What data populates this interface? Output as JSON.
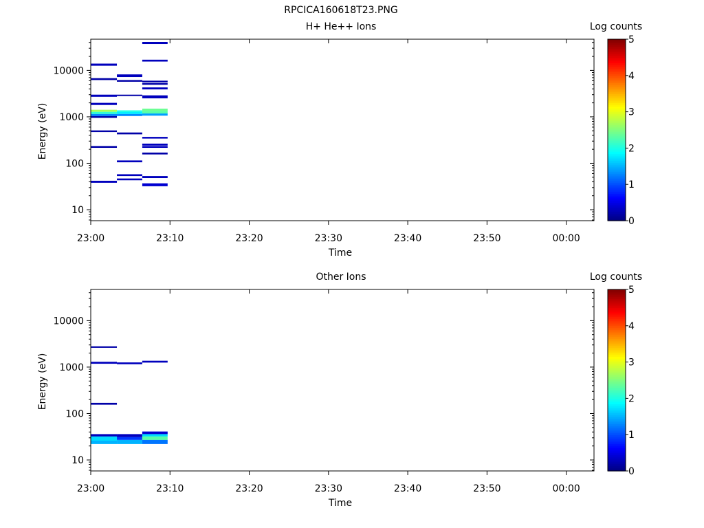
{
  "figure": {
    "title": "RPCICA160618T23.PNG"
  },
  "chart_data": [
    {
      "type": "heatmap",
      "title": "H+ He++ Ions",
      "xlabel": "Time",
      "ylabel": "Energy (eV)",
      "y_scale": "log",
      "x_ticks": [
        "23:00",
        "23:10",
        "23:20",
        "23:30",
        "23:40",
        "23:50",
        "00:00"
      ],
      "x_range_minutes": [
        0,
        63.5
      ],
      "y_ticks": [
        "10",
        "100",
        "1000",
        "10000"
      ],
      "y_range": [
        5.8,
        47000
      ],
      "colorbar": {
        "label": "Log counts",
        "ticks": [
          "0",
          "1",
          "2",
          "3",
          "4",
          "5"
        ],
        "range": [
          0,
          5
        ],
        "colormap": "jet"
      },
      "cells": [
        {
          "t0": 0.0,
          "t1": 3.3,
          "e0": 12600,
          "e1": 14000,
          "v": 0.3
        },
        {
          "t0": 0.0,
          "t1": 3.3,
          "e0": 6200,
          "e1": 6800,
          "v": 0.2
        },
        {
          "t0": 0.0,
          "t1": 3.3,
          "e0": 2700,
          "e1": 3000,
          "v": 0.3
        },
        {
          "t0": 0.0,
          "t1": 3.3,
          "e0": 1800,
          "e1": 2000,
          "v": 0.3
        },
        {
          "t0": 0.0,
          "t1": 3.3,
          "e0": 1280,
          "e1": 1420,
          "v": 2.7
        },
        {
          "t0": 0.0,
          "t1": 3.3,
          "e0": 1150,
          "e1": 1280,
          "v": 2.1
        },
        {
          "t0": 0.0,
          "t1": 3.3,
          "e0": 1040,
          "e1": 1150,
          "v": 1.3
        },
        {
          "t0": 0.0,
          "t1": 3.3,
          "e0": 950,
          "e1": 1040,
          "v": 0.2
        },
        {
          "t0": 0.0,
          "t1": 3.3,
          "e0": 470,
          "e1": 510,
          "v": 0.2
        },
        {
          "t0": 0.0,
          "t1": 3.3,
          "e0": 215,
          "e1": 235,
          "v": 0.2
        },
        {
          "t0": 0.0,
          "t1": 3.3,
          "e0": 38,
          "e1": 42,
          "v": 0.3
        },
        {
          "t0": 3.3,
          "t1": 6.5,
          "e0": 7200,
          "e1": 8200,
          "v": 0.3
        },
        {
          "t0": 3.3,
          "t1": 6.5,
          "e0": 5700,
          "e1": 6200,
          "v": 0.2
        },
        {
          "t0": 3.3,
          "t1": 6.5,
          "e0": 2800,
          "e1": 3000,
          "v": 0.2
        },
        {
          "t0": 3.3,
          "t1": 6.5,
          "e0": 1270,
          "e1": 1380,
          "v": 2.0
        },
        {
          "t0": 3.3,
          "t1": 6.5,
          "e0": 1150,
          "e1": 1270,
          "v": 1.8
        },
        {
          "t0": 3.3,
          "t1": 6.5,
          "e0": 1040,
          "e1": 1150,
          "v": 1.3
        },
        {
          "t0": 3.3,
          "t1": 6.5,
          "e0": 420,
          "e1": 460,
          "v": 0.2
        },
        {
          "t0": 3.3,
          "t1": 6.5,
          "e0": 105,
          "e1": 115,
          "v": 0.3
        },
        {
          "t0": 3.3,
          "t1": 6.5,
          "e0": 53,
          "e1": 58,
          "v": 0.3
        },
        {
          "t0": 3.3,
          "t1": 6.5,
          "e0": 43,
          "e1": 47,
          "v": 0.3
        },
        {
          "t0": 6.5,
          "t1": 9.7,
          "e0": 37000,
          "e1": 41000,
          "v": 0.3
        },
        {
          "t0": 6.5,
          "t1": 9.7,
          "e0": 15500,
          "e1": 17000,
          "v": 0.3
        },
        {
          "t0": 6.5,
          "t1": 9.7,
          "e0": 5500,
          "e1": 6000,
          "v": 0.2
        },
        {
          "t0": 6.5,
          "t1": 9.7,
          "e0": 4900,
          "e1": 5300,
          "v": 0.2
        },
        {
          "t0": 6.5,
          "t1": 9.7,
          "e0": 3900,
          "e1": 4300,
          "v": 0.3
        },
        {
          "t0": 6.5,
          "t1": 9.7,
          "e0": 2500,
          "e1": 2900,
          "v": 0.3
        },
        {
          "t0": 6.5,
          "t1": 9.7,
          "e0": 1330,
          "e1": 1500,
          "v": 2.4
        },
        {
          "t0": 6.5,
          "t1": 9.7,
          "e0": 1180,
          "e1": 1330,
          "v": 2.3
        },
        {
          "t0": 6.5,
          "t1": 9.7,
          "e0": 1060,
          "e1": 1180,
          "v": 1.4
        },
        {
          "t0": 6.5,
          "t1": 9.7,
          "e0": 340,
          "e1": 370,
          "v": 0.3
        },
        {
          "t0": 6.5,
          "t1": 9.7,
          "e0": 240,
          "e1": 265,
          "v": 0.3
        },
        {
          "t0": 6.5,
          "t1": 9.7,
          "e0": 215,
          "e1": 235,
          "v": 0.3
        },
        {
          "t0": 6.5,
          "t1": 9.7,
          "e0": 155,
          "e1": 170,
          "v": 0.2
        },
        {
          "t0": 6.5,
          "t1": 9.7,
          "e0": 48,
          "e1": 53,
          "v": 0.3
        },
        {
          "t0": 6.5,
          "t1": 9.7,
          "e0": 32,
          "e1": 37,
          "v": 0.4
        }
      ]
    },
    {
      "type": "heatmap",
      "title": "Other Ions",
      "xlabel": "Time",
      "ylabel": "Energy (eV)",
      "y_scale": "log",
      "x_ticks": [
        "23:00",
        "23:10",
        "23:20",
        "23:30",
        "23:40",
        "23:50",
        "00:00"
      ],
      "x_range_minutes": [
        0,
        63.5
      ],
      "y_ticks": [
        "10",
        "100",
        "1000",
        "10000"
      ],
      "y_range": [
        5.8,
        47000
      ],
      "colorbar": {
        "label": "Log counts",
        "ticks": [
          "0",
          "1",
          "2",
          "3",
          "4",
          "5"
        ],
        "range": [
          0,
          5
        ],
        "colormap": "jet"
      },
      "cells": [
        {
          "t0": 0.0,
          "t1": 3.3,
          "e0": 2600,
          "e1": 2800,
          "v": 0.2
        },
        {
          "t0": 0.0,
          "t1": 3.3,
          "e0": 1180,
          "e1": 1300,
          "v": 0.3
        },
        {
          "t0": 0.0,
          "t1": 3.3,
          "e0": 155,
          "e1": 170,
          "v": 0.2
        },
        {
          "t0": 0.0,
          "t1": 3.3,
          "e0": 32,
          "e1": 36,
          "v": 0.3
        },
        {
          "t0": 0.0,
          "t1": 3.3,
          "e0": 26,
          "e1": 32,
          "v": 1.7
        },
        {
          "t0": 0.0,
          "t1": 3.3,
          "e0": 22,
          "e1": 26,
          "v": 1.5
        },
        {
          "t0": 3.3,
          "t1": 6.5,
          "e0": 1150,
          "e1": 1260,
          "v": 0.3
        },
        {
          "t0": 3.3,
          "t1": 6.5,
          "e0": 31,
          "e1": 36,
          "v": 0.3
        },
        {
          "t0": 3.3,
          "t1": 6.5,
          "e0": 27,
          "e1": 31,
          "v": 0.9
        },
        {
          "t0": 3.3,
          "t1": 6.5,
          "e0": 22,
          "e1": 27,
          "v": 1.5
        },
        {
          "t0": 6.5,
          "t1": 9.7,
          "e0": 1250,
          "e1": 1370,
          "v": 0.3
        },
        {
          "t0": 6.5,
          "t1": 9.7,
          "e0": 36,
          "e1": 41,
          "v": 0.4
        },
        {
          "t0": 6.5,
          "t1": 9.7,
          "e0": 32,
          "e1": 36,
          "v": 1.7
        },
        {
          "t0": 6.5,
          "t1": 9.7,
          "e0": 27,
          "e1": 32,
          "v": 2.3
        },
        {
          "t0": 6.5,
          "t1": 9.7,
          "e0": 22,
          "e1": 27,
          "v": 1.2
        }
      ]
    }
  ]
}
